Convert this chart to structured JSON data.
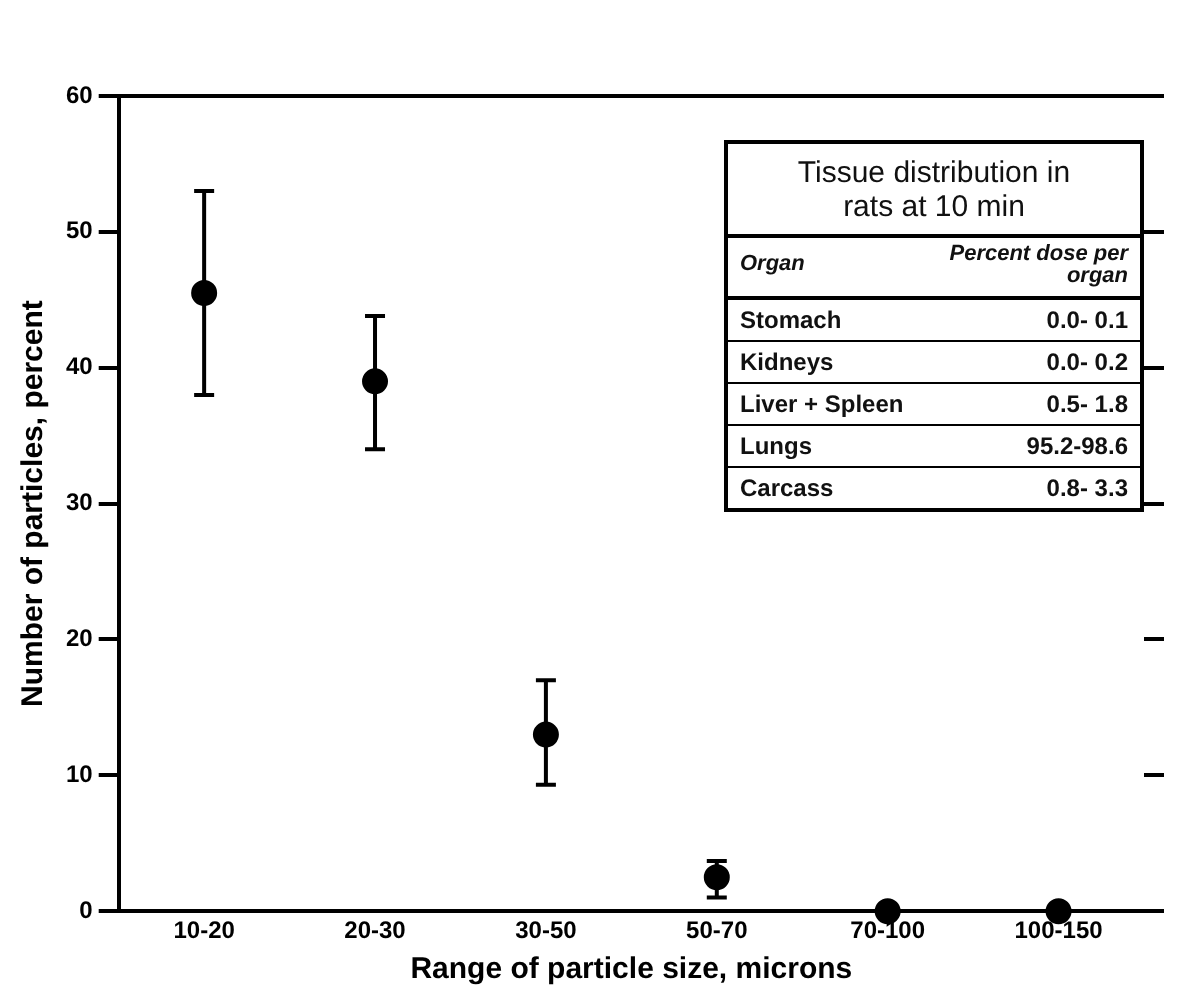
{
  "chart_data": {
    "type": "scatter",
    "xlabel": "Range of particle size, microns",
    "ylabel": "Number of particles, percent",
    "categories": [
      "10-20",
      "20-30",
      "30-50",
      "50-70",
      "70-100",
      "100-150"
    ],
    "values": [
      45.5,
      39,
      13,
      2.5,
      0,
      0
    ],
    "errors": [
      [
        38,
        53
      ],
      [
        34,
        43.8
      ],
      [
        9.3,
        17
      ],
      [
        1,
        3.7
      ],
      null,
      null
    ],
    "color": "#000000",
    "marker": "circle",
    "grid": false,
    "legend": false,
    "ylim": [
      0,
      60
    ],
    "yticks": [
      0,
      10,
      20,
      30,
      40,
      50,
      60
    ],
    "annotations": [
      "Tissue distribution in rats at 10 min",
      "Organ",
      "Percent dose per organ",
      "Stomach",
      "0.0- 0.1",
      "Kidneys",
      "0.0- 0.2",
      "Liver + Spleen",
      "0.5- 1.8",
      "Lungs",
      "95.2-98.6",
      "Carcass",
      "0.8- 3.3"
    ]
  }
}
